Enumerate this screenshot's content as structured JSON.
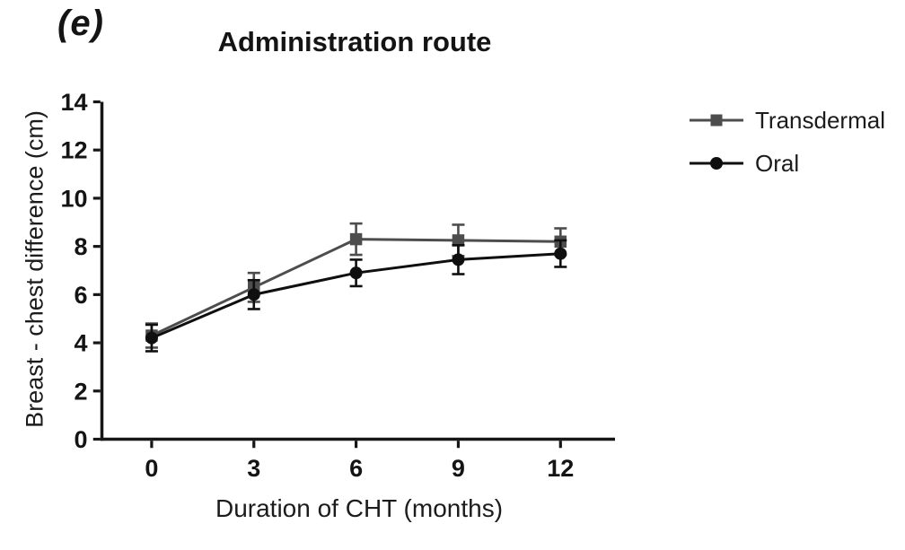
{
  "figure": {
    "panel_label": "(e)"
  },
  "chart_data": {
    "type": "line",
    "title": "Administration route",
    "xlabel": "Duration of CHT (months)",
    "ylabel": "Breast - chest difference (cm)",
    "x": [
      0,
      3,
      6,
      9,
      12
    ],
    "xticks": [
      0,
      3,
      6,
      9,
      12
    ],
    "yticks": [
      0,
      2,
      4,
      6,
      8,
      10,
      12,
      14
    ],
    "xlim": [
      -1.5,
      13.6
    ],
    "ylim": [
      0,
      14
    ],
    "grid": false,
    "error_bars": true,
    "legend_position": "outside-top-right",
    "series": [
      {
        "name": "Transdermal",
        "marker": "square",
        "color": "#4d4d4d",
        "values": [
          4.3,
          6.3,
          8.3,
          8.25,
          8.2
        ],
        "errors": [
          0.5,
          0.6,
          0.65,
          0.65,
          0.55
        ]
      },
      {
        "name": "Oral",
        "marker": "circle",
        "color": "#0f0f0f",
        "values": [
          4.2,
          6.0,
          6.9,
          7.45,
          7.7
        ],
        "errors": [
          0.55,
          0.6,
          0.55,
          0.6,
          0.55
        ]
      }
    ]
  }
}
